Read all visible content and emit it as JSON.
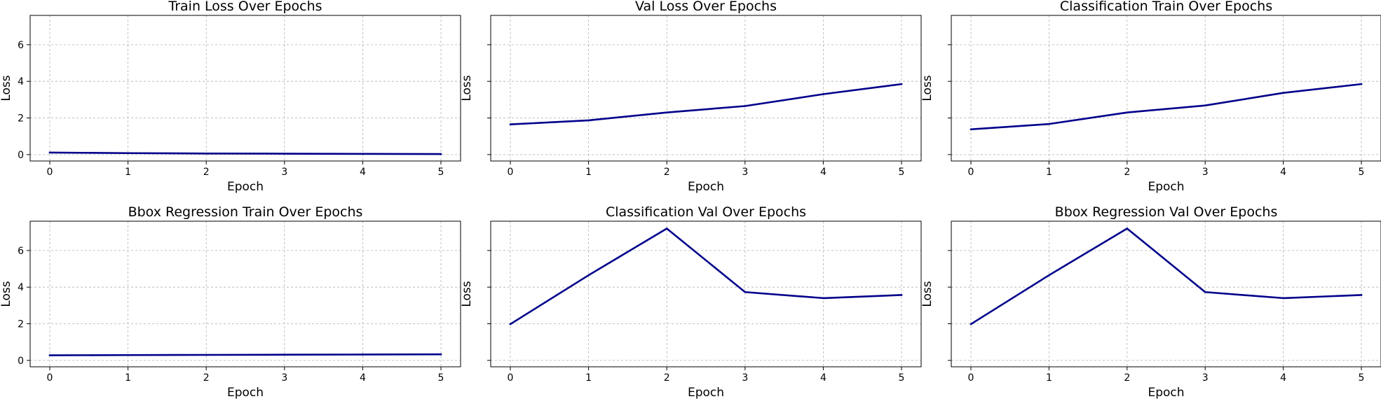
{
  "colors": {
    "line": "#00008b",
    "grid": "#b0b0b0"
  },
  "chart_data": [
    {
      "type": "line",
      "title": "Train Loss Over Epochs",
      "xlabel": "Epoch",
      "ylabel": "Loss",
      "x": [
        0,
        1,
        2,
        3,
        4,
        5
      ],
      "values": [
        0.11,
        0.08,
        0.06,
        0.05,
        0.04,
        0.03
      ],
      "xticks": [
        0,
        1,
        2,
        3,
        4,
        5
      ],
      "yticks": [
        0,
        2,
        4,
        6
      ],
      "ylim": [
        -0.35,
        7.6
      ],
      "grid": true,
      "show_y_tick_labels": true
    },
    {
      "type": "line",
      "title": "Val Loss Over Epochs",
      "xlabel": "Epoch",
      "ylabel": "Loss",
      "x": [
        0,
        1,
        2,
        3,
        4,
        5
      ],
      "values": [
        1.65,
        1.87,
        2.3,
        2.65,
        3.3,
        3.85
      ],
      "xticks": [
        0,
        1,
        2,
        3,
        4,
        5
      ],
      "yticks": [
        0,
        2,
        4,
        6
      ],
      "ylim": [
        -0.35,
        7.6
      ],
      "grid": true,
      "show_y_tick_labels": false
    },
    {
      "type": "line",
      "title": "Classification Train Over Epochs",
      "xlabel": "Epoch",
      "ylabel": "Loss",
      "x": [
        0,
        1,
        2,
        3,
        4,
        5
      ],
      "values": [
        1.38,
        1.67,
        2.3,
        2.68,
        3.37,
        3.85
      ],
      "xticks": [
        0,
        1,
        2,
        3,
        4,
        5
      ],
      "yticks": [
        0,
        2,
        4,
        6
      ],
      "ylim": [
        -0.35,
        7.6
      ],
      "grid": true,
      "show_y_tick_labels": false
    },
    {
      "type": "line",
      "title": "Bbox Regression Train Over Epochs",
      "xlabel": "Epoch",
      "ylabel": "Loss",
      "x": [
        0,
        1,
        2,
        3,
        4,
        5
      ],
      "values": [
        0.28,
        0.29,
        0.3,
        0.31,
        0.32,
        0.33
      ],
      "xticks": [
        0,
        1,
        2,
        3,
        4,
        5
      ],
      "yticks": [
        0,
        2,
        4,
        6
      ],
      "ylim": [
        -0.35,
        7.6
      ],
      "grid": true,
      "show_y_tick_labels": true
    },
    {
      "type": "line",
      "title": "Classification Val Over Epochs",
      "xlabel": "Epoch",
      "ylabel": "Loss",
      "x": [
        0,
        1,
        2,
        3,
        4,
        5
      ],
      "values": [
        1.98,
        4.65,
        7.2,
        3.73,
        3.4,
        3.57
      ],
      "xticks": [
        0,
        1,
        2,
        3,
        4,
        5
      ],
      "yticks": [
        0,
        2,
        4,
        6
      ],
      "ylim": [
        -0.35,
        7.6
      ],
      "grid": true,
      "show_y_tick_labels": false
    },
    {
      "type": "line",
      "title": "Bbox Regression Val Over Epochs",
      "xlabel": "Epoch",
      "ylabel": "Loss",
      "x": [
        0,
        1,
        2,
        3,
        4,
        5
      ],
      "values": [
        1.98,
        4.65,
        7.2,
        3.73,
        3.4,
        3.57
      ],
      "xticks": [
        0,
        1,
        2,
        3,
        4,
        5
      ],
      "yticks": [
        0,
        2,
        4,
        6
      ],
      "ylim": [
        -0.35,
        7.6
      ],
      "grid": true,
      "show_y_tick_labels": false
    }
  ]
}
